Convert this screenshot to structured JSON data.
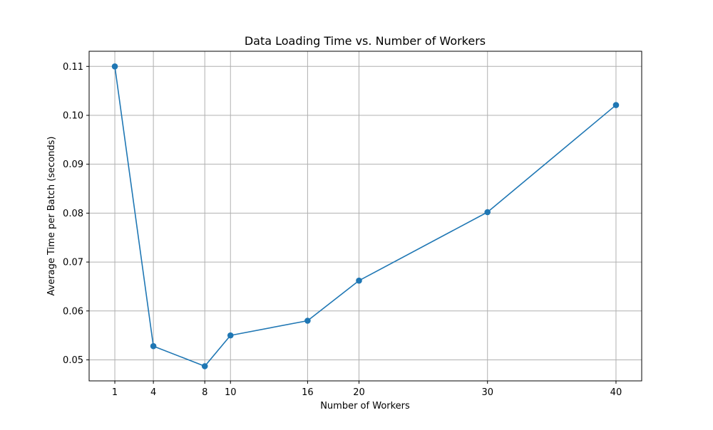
{
  "chart_data": {
    "type": "line",
    "title": "Data Loading Time vs. Number of Workers",
    "xlabel": "Number of Workers",
    "ylabel": "Average Time per Batch (seconds)",
    "x": [
      1,
      4,
      8,
      10,
      16,
      20,
      30,
      40
    ],
    "series": [
      {
        "values": [
          0.11,
          0.0528,
          0.0487,
          0.055,
          0.058,
          0.0662,
          0.0802,
          0.1021
        ],
        "color": "#1f77b4",
        "marker": "circle"
      }
    ],
    "xticks": [
      1,
      4,
      8,
      10,
      16,
      20,
      30,
      40
    ],
    "yticks": [
      0.05,
      0.06,
      0.07,
      0.08,
      0.09,
      0.1,
      0.11
    ],
    "ytick_labels": [
      "0.05",
      "0.06",
      "0.07",
      "0.08",
      "0.09",
      "0.10",
      "0.11"
    ],
    "xlim": [
      -1.0,
      42.0
    ],
    "ylim": [
      0.0457,
      0.1131
    ],
    "grid": true,
    "grid_color": "#b0b0b0"
  }
}
